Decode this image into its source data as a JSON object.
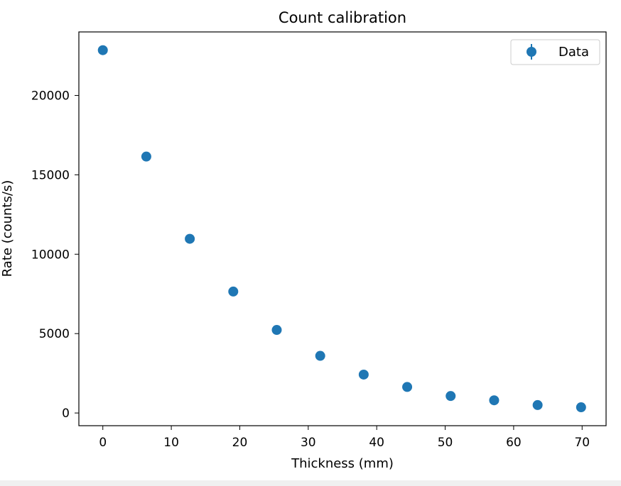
{
  "chart_data": {
    "type": "scatter",
    "title": "Count calibration",
    "xlabel": "Thickness (mm)",
    "ylabel": "Rate (counts/s)",
    "xlim": [
      -3.5,
      73.5
    ],
    "ylim": [
      -800,
      24000
    ],
    "xticks": [
      0,
      10,
      20,
      30,
      40,
      50,
      60,
      70
    ],
    "yticks": [
      0,
      5000,
      10000,
      15000,
      20000
    ],
    "legend": {
      "position": "top-right",
      "entries": [
        "Data"
      ]
    },
    "grid": false,
    "marker_color": "#1f77b4",
    "series": [
      {
        "name": "Data",
        "x": [
          0.0,
          6.35,
          12.7,
          19.05,
          25.4,
          31.75,
          38.1,
          44.45,
          50.8,
          57.15,
          63.5,
          69.85
        ],
        "y": [
          22850,
          16150,
          10970,
          7650,
          5230,
          3600,
          2420,
          1640,
          1070,
          800,
          500,
          360
        ]
      }
    ]
  }
}
